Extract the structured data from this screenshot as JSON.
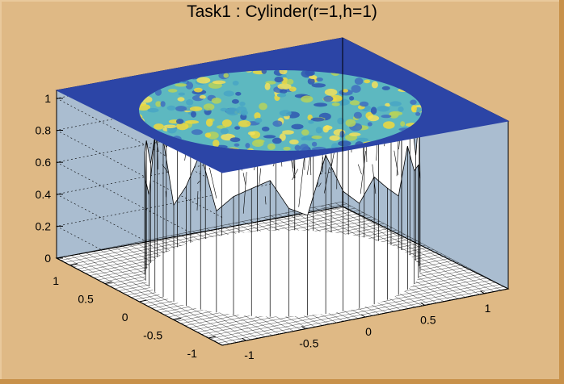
{
  "chart_data": {
    "type": "lego3d",
    "title": "Task1 : Cylinder(r=1,h=1)",
    "xlim": [
      -1.2,
      1.2
    ],
    "ylim": [
      -1.2,
      1.2
    ],
    "zlim": [
      0,
      1.05
    ],
    "x_ticks": [
      "-1",
      "-0.5",
      "0",
      "0.5",
      "1"
    ],
    "y_ticks": [
      "-1",
      "-0.5",
      "0",
      "0.5",
      "1"
    ],
    "z_ticks": [
      "0",
      "0.2",
      "0.4",
      "0.6",
      "0.8",
      "1"
    ],
    "x_tick_values": [
      -1,
      -0.5,
      0,
      0.5,
      1
    ],
    "y_tick_values": [
      -1,
      -0.5,
      0,
      0.5,
      1
    ],
    "z_tick_values": [
      0,
      0.2,
      0.4,
      0.6,
      0.8,
      1
    ],
    "surface": {
      "shape": "cylinder",
      "radius": 1,
      "height": 1,
      "inside_value_range": [
        0.55,
        1.0
      ],
      "outside_value": 0
    },
    "colors": {
      "canvas": "#dfb985",
      "wall": "#aabdd0",
      "floor": "#ffffff",
      "palette_low": "#2a3fa3",
      "palette_high": "#f2da3a"
    }
  }
}
